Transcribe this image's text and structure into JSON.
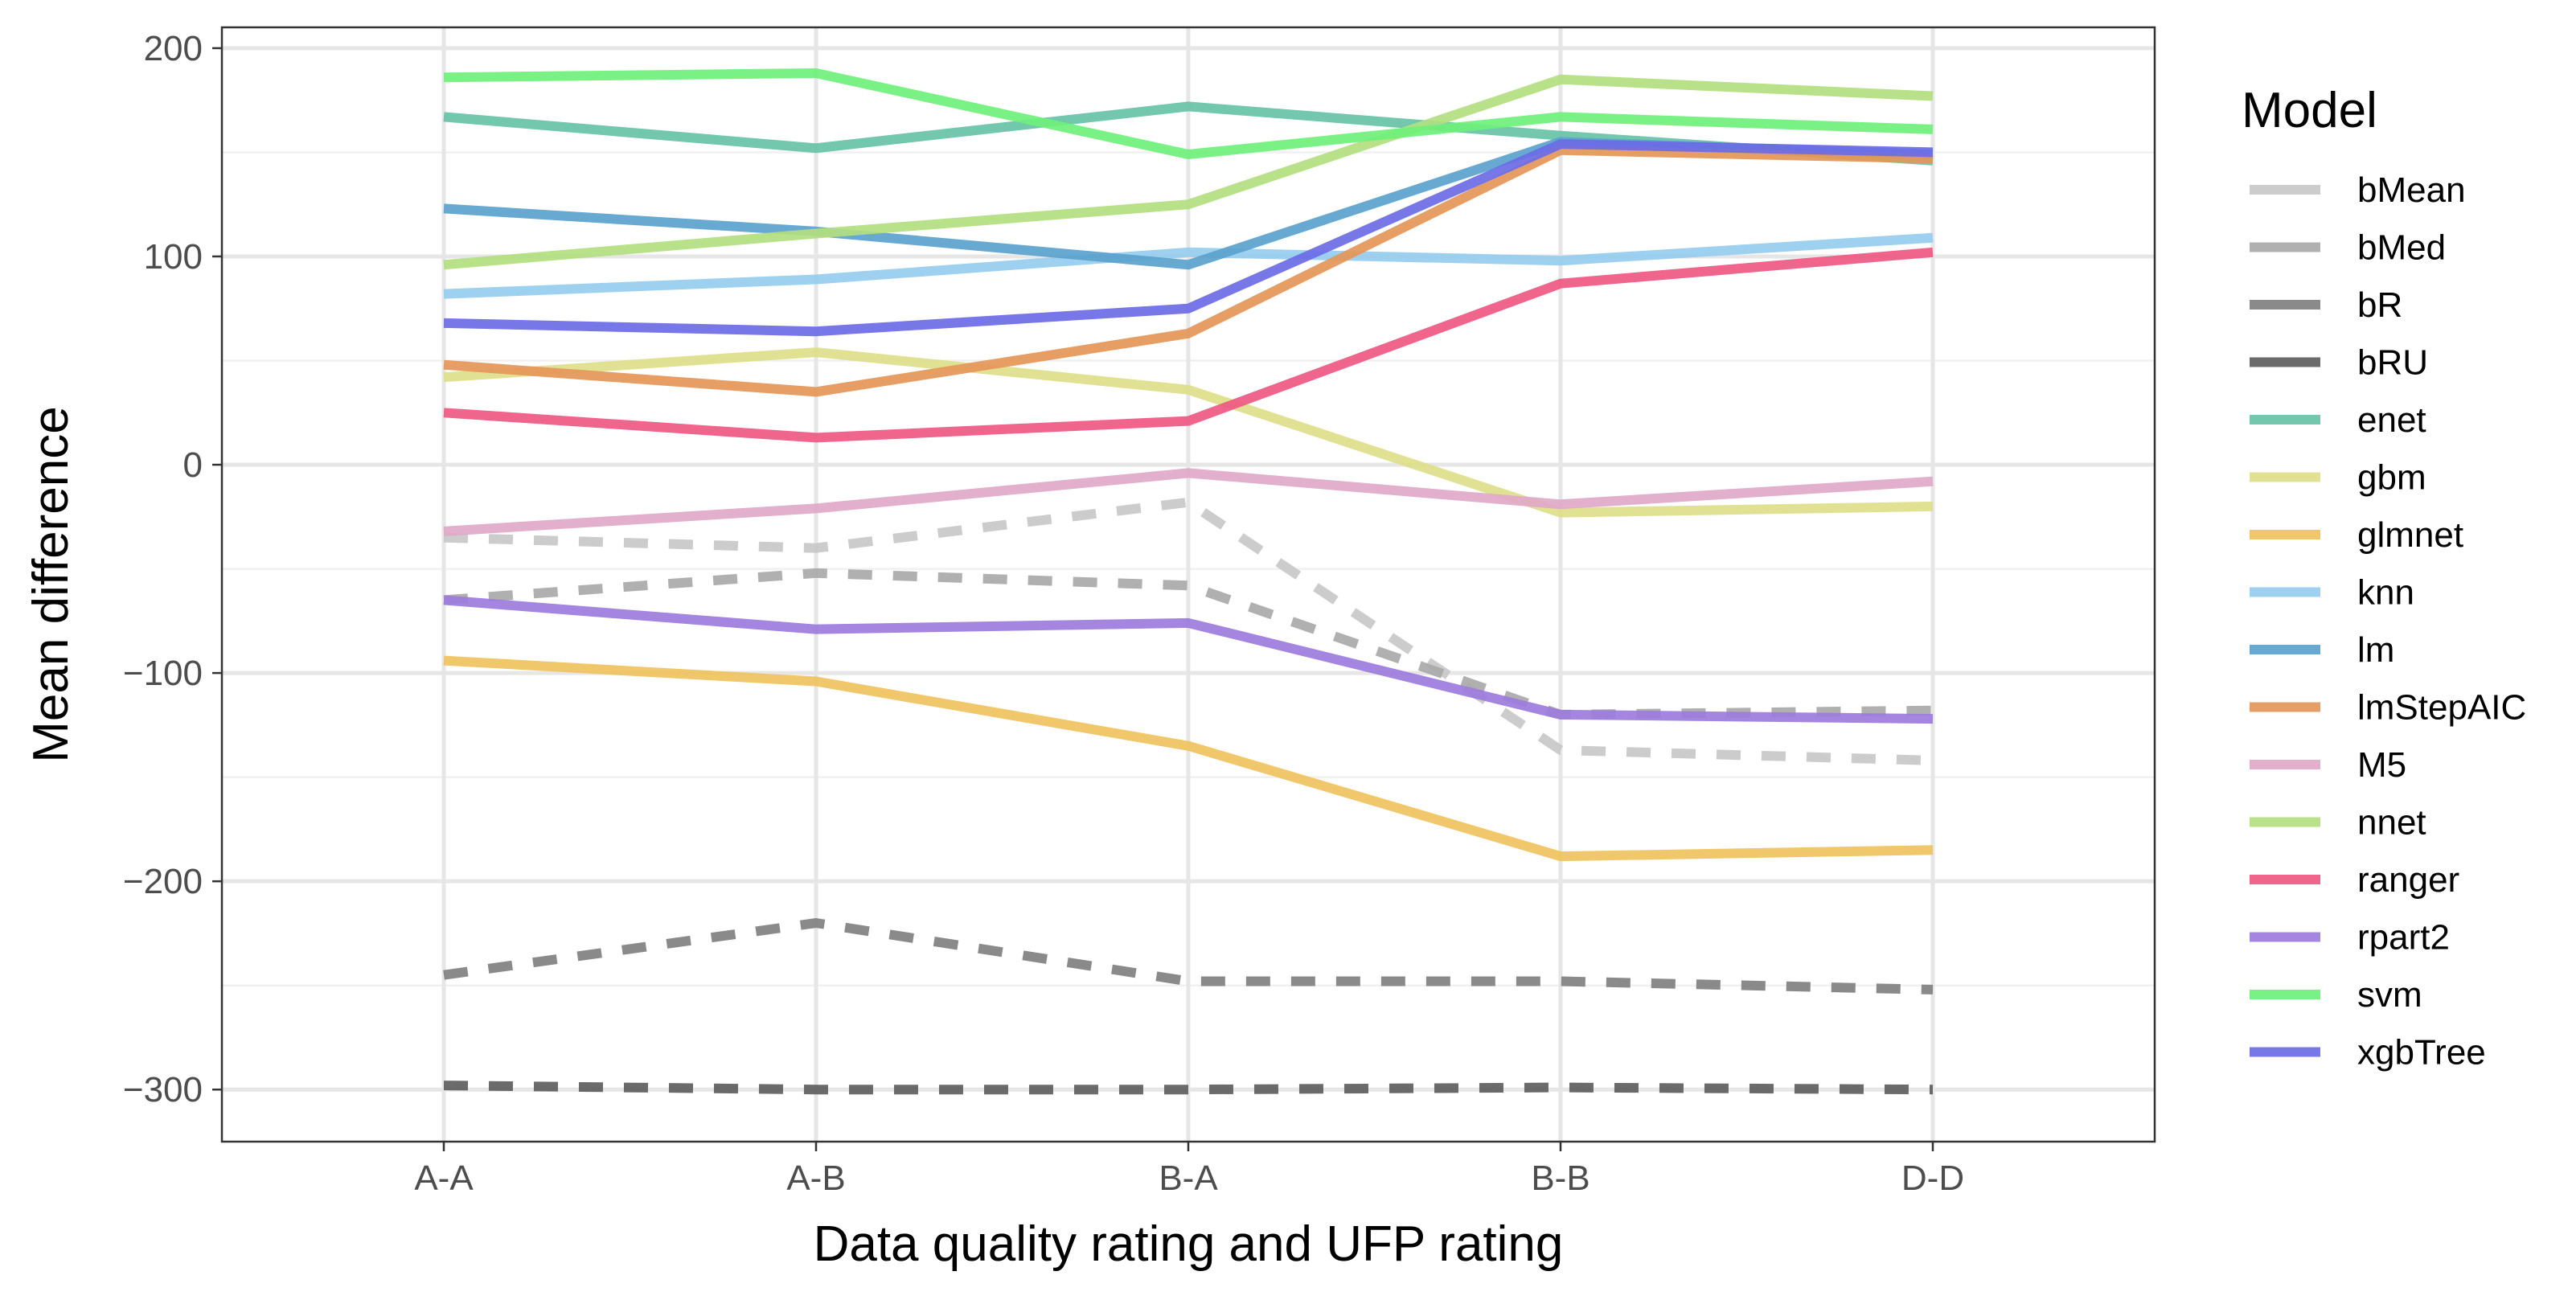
{
  "chart_data": {
    "type": "line",
    "title": "",
    "xlabel": "Data quality rating and UFP rating",
    "ylabel": "Mean difference",
    "categories": [
      "A-A",
      "A-B",
      "B-A",
      "B-B",
      "D-D"
    ],
    "ylim": [
      -325,
      210
    ],
    "yticks": [
      -300,
      -200,
      -100,
      0,
      100,
      200
    ],
    "yticklabels": [
      "−300",
      "−200",
      "−100",
      "0",
      "100",
      "200"
    ],
    "grid": true,
    "legend_title": "Model",
    "legend_position": "right",
    "series": [
      {
        "name": "bMean",
        "color": "#c8c8c8",
        "dashed": true,
        "values": [
          -35,
          -40,
          -18,
          -137,
          -142
        ]
      },
      {
        "name": "bMed",
        "color": "#a9a9a9",
        "dashed": true,
        "values": [
          -65,
          -52,
          -58,
          -120,
          -118
        ]
      },
      {
        "name": "bR",
        "color": "#808080",
        "dashed": true,
        "values": [
          -245,
          -220,
          -248,
          -248,
          -252
        ]
      },
      {
        "name": "bRU",
        "color": "#5e5e5e",
        "dashed": true,
        "values": [
          -298,
          -300,
          -300,
          -299,
          -300
        ]
      },
      {
        "name": "enet",
        "color": "#66c2a5",
        "dashed": false,
        "values": [
          167,
          152,
          172,
          158,
          146
        ]
      },
      {
        "name": "gbm",
        "color": "#dede8a",
        "dashed": false,
        "values": [
          42,
          54,
          36,
          -23,
          -20
        ]
      },
      {
        "name": "glmnet",
        "color": "#f0c25e",
        "dashed": false,
        "values": [
          -94,
          -104,
          -135,
          -188,
          -185
        ]
      },
      {
        "name": "knn",
        "color": "#96cdef",
        "dashed": false,
        "values": [
          82,
          89,
          102,
          98,
          109
        ]
      },
      {
        "name": "lm",
        "color": "#5aa2cd",
        "dashed": false,
        "values": [
          123,
          112,
          96,
          155,
          149
        ]
      },
      {
        "name": "lmStepAIC",
        "color": "#e59658",
        "dashed": false,
        "values": [
          48,
          35,
          63,
          151,
          147
        ]
      },
      {
        "name": "M5",
        "color": "#e0a8c8",
        "dashed": false,
        "values": [
          -32,
          -21,
          -4,
          -19,
          -8
        ]
      },
      {
        "name": "nnet",
        "color": "#b2de80",
        "dashed": false,
        "values": [
          96,
          111,
          125,
          185,
          177
        ]
      },
      {
        "name": "ranger",
        "color": "#ee5882",
        "dashed": false,
        "values": [
          25,
          13,
          21,
          87,
          102
        ]
      },
      {
        "name": "rpart2",
        "color": "#9c7bdc",
        "dashed": false,
        "values": [
          -65,
          -79,
          -76,
          -120,
          -122
        ]
      },
      {
        "name": "svm",
        "color": "#6ef07a",
        "dashed": false,
        "values": [
          186,
          188,
          149,
          167,
          161
        ]
      },
      {
        "name": "xgbTree",
        "color": "#6b6be6",
        "dashed": false,
        "values": [
          68,
          64,
          75,
          154,
          150
        ]
      }
    ]
  }
}
